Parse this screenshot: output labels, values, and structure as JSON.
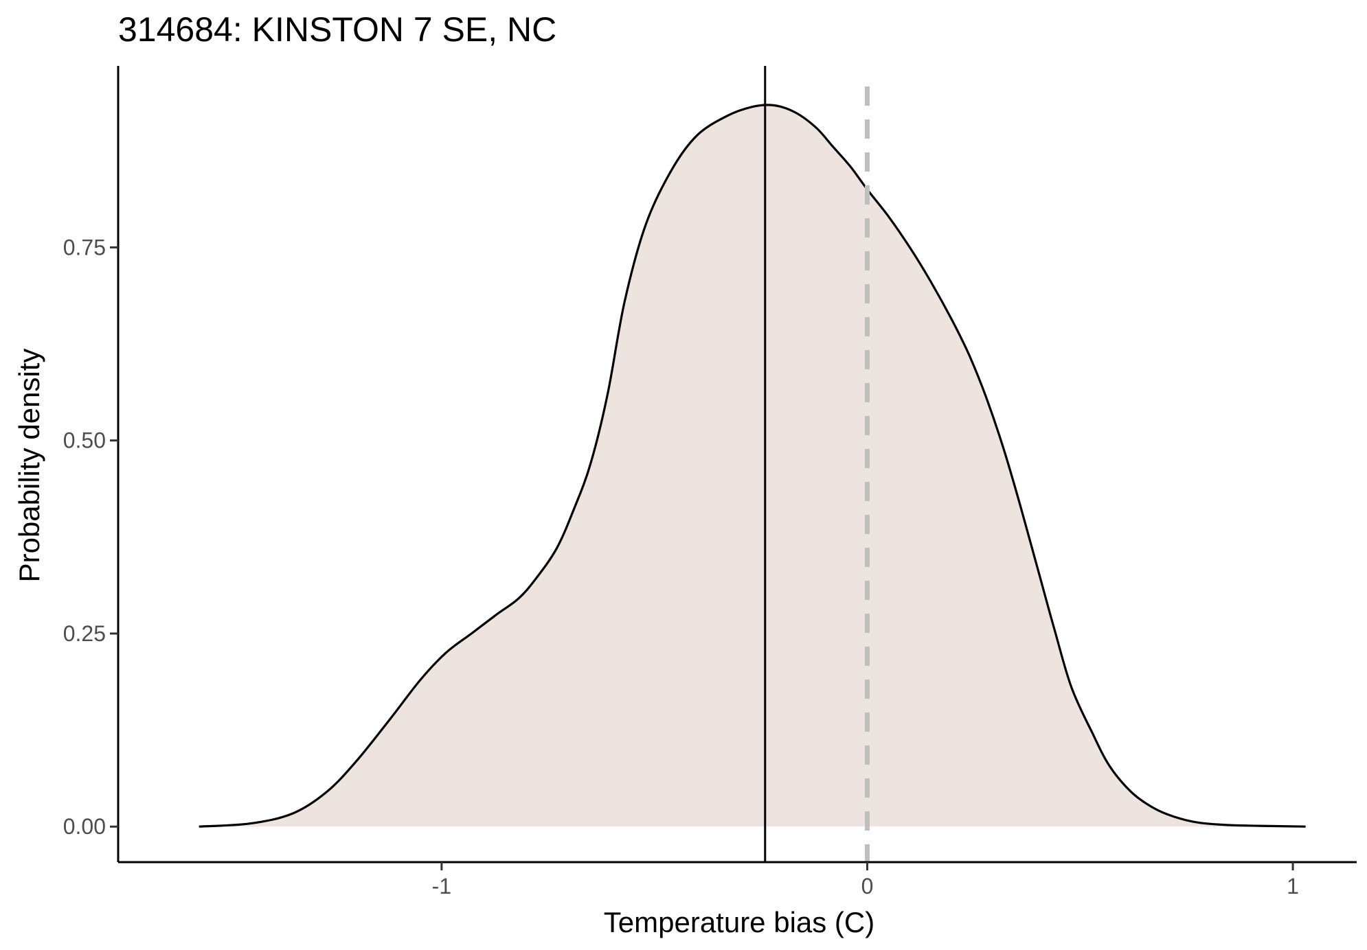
{
  "chart_data": {
    "type": "area",
    "title": "314684: KINSTON 7 SE, NC",
    "xlabel": "Temperature bias (C)",
    "ylabel": "Probability density",
    "xlim": [
      -1.76,
      1.15
    ],
    "ylim": [
      -0.046,
      0.985
    ],
    "x_ticks": [
      -1,
      0,
      1
    ],
    "x_tick_labels": [
      "-1",
      "0",
      "1"
    ],
    "y_ticks": [
      0,
      0.25,
      0.5,
      0.75
    ],
    "y_tick_labels": [
      "0.00",
      "0.25",
      "0.50",
      "0.75"
    ],
    "grid": false,
    "legend": "none",
    "fill_color": "#ede3df",
    "line_color": "#000000",
    "mean_line_x": -0.24,
    "reference_line_x": 0,
    "reference_line_color": "#bfbfbf",
    "reference_line_style": "dashed",
    "density": {
      "x": [
        -1.57,
        -1.45,
        -1.35,
        -1.27,
        -1.2,
        -1.12,
        -1.05,
        -0.99,
        -0.93,
        -0.87,
        -0.82,
        -0.78,
        -0.73,
        -0.69,
        -0.65,
        -0.61,
        -0.57,
        -0.52,
        -0.46,
        -0.4,
        -0.33,
        -0.27,
        -0.22,
        -0.17,
        -0.12,
        -0.08,
        -0.04,
        0.0,
        0.05,
        0.1,
        0.15,
        0.2,
        0.24,
        0.28,
        0.32,
        0.36,
        0.4,
        0.44,
        0.48,
        0.53,
        0.57,
        0.62,
        0.67,
        0.72,
        0.78,
        0.85,
        0.92,
        1.03
      ],
      "y": [
        0.0,
        0.004,
        0.017,
        0.045,
        0.085,
        0.14,
        0.19,
        0.225,
        0.25,
        0.275,
        0.295,
        0.32,
        0.36,
        0.41,
        0.47,
        0.56,
        0.68,
        0.78,
        0.85,
        0.895,
        0.92,
        0.932,
        0.934,
        0.925,
        0.905,
        0.88,
        0.855,
        0.825,
        0.79,
        0.75,
        0.705,
        0.655,
        0.61,
        0.555,
        0.49,
        0.415,
        0.335,
        0.255,
        0.18,
        0.12,
        0.078,
        0.045,
        0.025,
        0.013,
        0.005,
        0.002,
        0.001,
        0.0
      ]
    }
  }
}
